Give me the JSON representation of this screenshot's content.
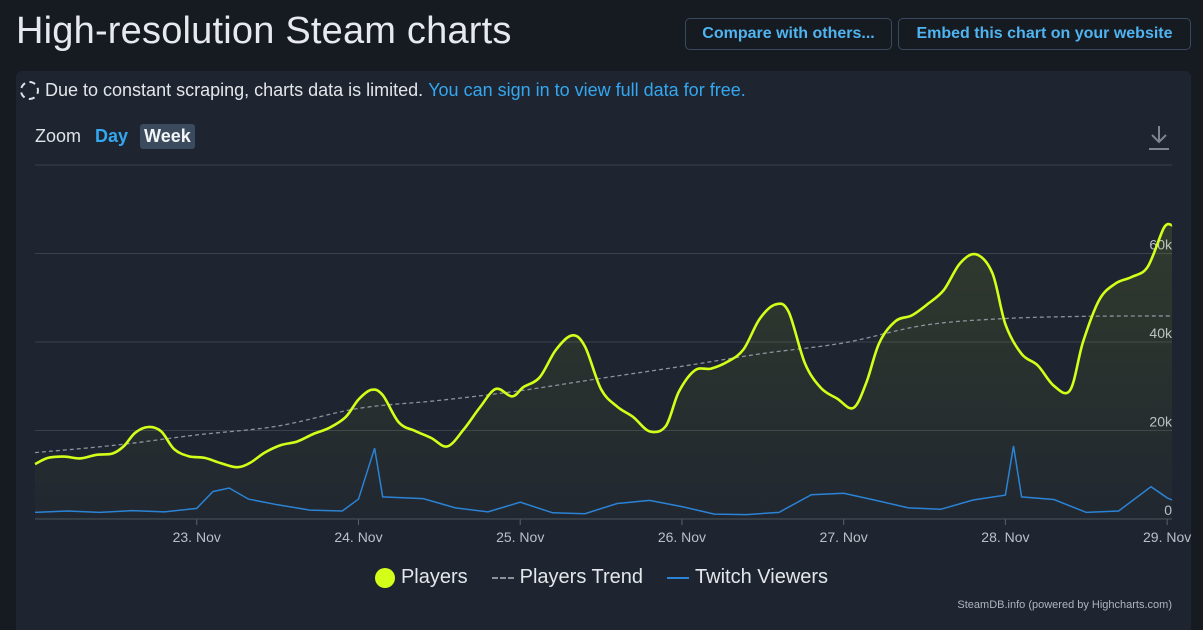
{
  "page": {
    "title": "High-resolution Steam charts",
    "compare_label": "Compare with others...",
    "embed_label": "Embed this chart on your website",
    "notice_text": "Due to constant scraping, charts data is limited.",
    "notice_link": "You can sign in to view full data for free.",
    "zoom_label": "Zoom",
    "zoom_day": "Day",
    "zoom_week": "Week",
    "credits": "SteamDB.info (powered by Highcharts.com)",
    "colors": {
      "players": "#d4ff19",
      "trend": "#8b929b",
      "twitch": "#2b83d6",
      "link": "#33a7f0"
    },
    "icons": [
      "dashed-circle-icon",
      "download-icon"
    ]
  },
  "chart_data": {
    "type": "line",
    "x_unit": "days since 22 Nov 00:00",
    "xlim": [
      0.0,
      7.03
    ],
    "ylim": [
      0,
      80000
    ],
    "y_ticks": [
      0,
      20000,
      40000,
      60000
    ],
    "y_tick_labels": [
      "0",
      "20k",
      "40k",
      "60k"
    ],
    "x_ticks": [
      1,
      2,
      3,
      4,
      5,
      6,
      7
    ],
    "x_tick_labels": [
      "23. Nov",
      "24. Nov",
      "25. Nov",
      "26. Nov",
      "27. Nov",
      "28. Nov",
      "29. Nov"
    ],
    "legend": {
      "position": "bottom-center"
    },
    "series": [
      {
        "name": "Players",
        "style": "line-area",
        "points": [
          [
            0.0,
            12400
          ],
          [
            0.08,
            13800
          ],
          [
            0.18,
            14100
          ],
          [
            0.28,
            13700
          ],
          [
            0.38,
            14500
          ],
          [
            0.48,
            14800
          ],
          [
            0.55,
            16500
          ],
          [
            0.62,
            19500
          ],
          [
            0.7,
            20800
          ],
          [
            0.78,
            19800
          ],
          [
            0.86,
            15800
          ],
          [
            0.95,
            14200
          ],
          [
            1.05,
            13800
          ],
          [
            1.15,
            12600
          ],
          [
            1.25,
            11700
          ],
          [
            1.33,
            12700
          ],
          [
            1.42,
            15000
          ],
          [
            1.52,
            16700
          ],
          [
            1.62,
            17500
          ],
          [
            1.72,
            19200
          ],
          [
            1.82,
            20600
          ],
          [
            1.92,
            23000
          ],
          [
            2.0,
            27000
          ],
          [
            2.08,
            29200
          ],
          [
            2.15,
            28000
          ],
          [
            2.25,
            21800
          ],
          [
            2.35,
            19900
          ],
          [
            2.45,
            18300
          ],
          [
            2.55,
            16400
          ],
          [
            2.65,
            20200
          ],
          [
            2.75,
            25200
          ],
          [
            2.85,
            29400
          ],
          [
            2.95,
            27700
          ],
          [
            3.02,
            29800
          ],
          [
            3.12,
            32000
          ],
          [
            3.22,
            38200
          ],
          [
            3.32,
            41500
          ],
          [
            3.4,
            39000
          ],
          [
            3.5,
            29300
          ],
          [
            3.6,
            25400
          ],
          [
            3.7,
            23000
          ],
          [
            3.8,
            19800
          ],
          [
            3.9,
            21000
          ],
          [
            3.98,
            28700
          ],
          [
            4.08,
            33600
          ],
          [
            4.18,
            34000
          ],
          [
            4.28,
            35500
          ],
          [
            4.38,
            38300
          ],
          [
            4.48,
            45200
          ],
          [
            4.58,
            48500
          ],
          [
            4.66,
            46800
          ],
          [
            4.76,
            35200
          ],
          [
            4.86,
            29600
          ],
          [
            4.96,
            27200
          ],
          [
            5.06,
            25100
          ],
          [
            5.14,
            30800
          ],
          [
            5.22,
            39800
          ],
          [
            5.32,
            44700
          ],
          [
            5.42,
            46000
          ],
          [
            5.52,
            48600
          ],
          [
            5.62,
            51800
          ],
          [
            5.72,
            57800
          ],
          [
            5.82,
            59800
          ],
          [
            5.92,
            55500
          ],
          [
            6.0,
            44000
          ],
          [
            6.1,
            37300
          ],
          [
            6.2,
            34700
          ],
          [
            6.3,
            30100
          ],
          [
            6.4,
            29100
          ],
          [
            6.48,
            40000
          ],
          [
            6.58,
            49500
          ],
          [
            6.68,
            53200
          ],
          [
            6.78,
            54700
          ],
          [
            6.88,
            57000
          ],
          [
            6.98,
            65800
          ],
          [
            7.03,
            66400
          ]
        ]
      },
      {
        "name": "Players Trend",
        "style": "dashed",
        "points": [
          [
            0.0,
            15000
          ],
          [
            0.5,
            16700
          ],
          [
            1.0,
            19000
          ],
          [
            1.5,
            21000
          ],
          [
            2.0,
            25000
          ],
          [
            2.5,
            26800
          ],
          [
            3.0,
            29000
          ],
          [
            3.5,
            31800
          ],
          [
            4.0,
            34500
          ],
          [
            4.5,
            37400
          ],
          [
            5.0,
            39800
          ],
          [
            5.5,
            43800
          ],
          [
            6.0,
            45300
          ],
          [
            6.5,
            45800
          ],
          [
            7.03,
            45900
          ]
        ]
      },
      {
        "name": "Twitch Viewers",
        "style": "line",
        "points": [
          [
            0.0,
            1500
          ],
          [
            0.2,
            1800
          ],
          [
            0.4,
            1500
          ],
          [
            0.6,
            1900
          ],
          [
            0.8,
            1600
          ],
          [
            1.0,
            2400
          ],
          [
            1.1,
            6200
          ],
          [
            1.2,
            7000
          ],
          [
            1.32,
            4500
          ],
          [
            1.5,
            3200
          ],
          [
            1.7,
            2000
          ],
          [
            1.9,
            1800
          ],
          [
            2.0,
            4500
          ],
          [
            2.1,
            16000
          ],
          [
            2.15,
            5000
          ],
          [
            2.4,
            4600
          ],
          [
            2.6,
            2500
          ],
          [
            2.8,
            1600
          ],
          [
            3.0,
            3800
          ],
          [
            3.2,
            1400
          ],
          [
            3.4,
            1200
          ],
          [
            3.6,
            3500
          ],
          [
            3.8,
            4200
          ],
          [
            4.0,
            2800
          ],
          [
            4.2,
            1100
          ],
          [
            4.4,
            1000
          ],
          [
            4.6,
            1500
          ],
          [
            4.8,
            5500
          ],
          [
            5.0,
            5800
          ],
          [
            5.2,
            4200
          ],
          [
            5.4,
            2500
          ],
          [
            5.6,
            2200
          ],
          [
            5.8,
            4300
          ],
          [
            6.0,
            5400
          ],
          [
            6.05,
            16500
          ],
          [
            6.1,
            5000
          ],
          [
            6.3,
            4400
          ],
          [
            6.5,
            1500
          ],
          [
            6.7,
            1800
          ],
          [
            6.9,
            7300
          ],
          [
            7.0,
            4800
          ],
          [
            7.03,
            4300
          ]
        ]
      }
    ]
  }
}
